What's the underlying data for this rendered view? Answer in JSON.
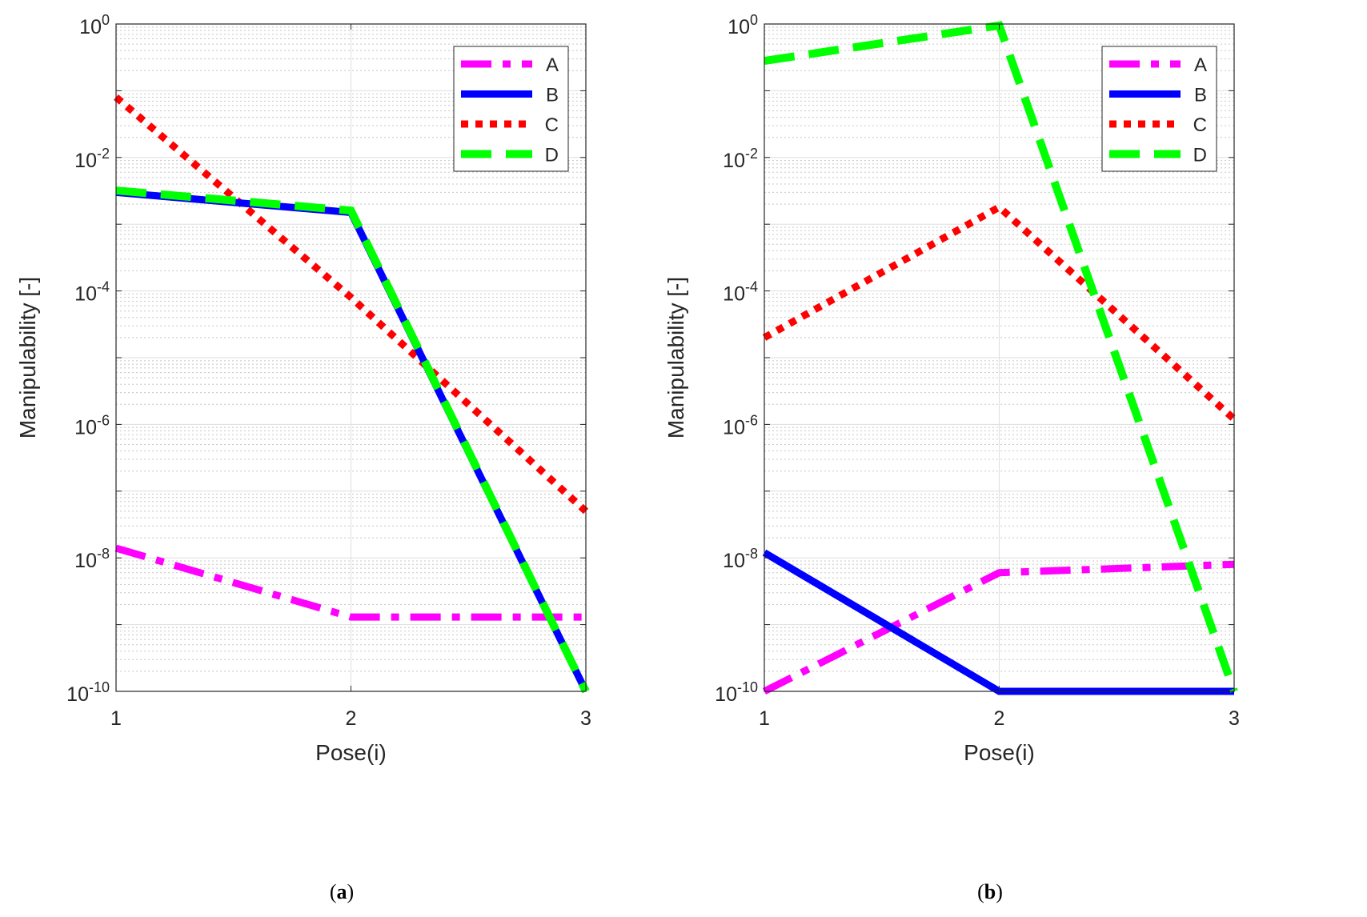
{
  "chart_data": [
    {
      "type": "line",
      "caption_letter": "a",
      "xlabel": "Pose(i)",
      "ylabel": "Manipulability [-]",
      "x": [
        1,
        2,
        3
      ],
      "xticks": [
        "1",
        "2",
        "3"
      ],
      "yscale": "log",
      "ylim": [
        1e-10,
        1
      ],
      "yticks": [
        {
          "base": "10",
          "exp": "0"
        },
        {
          "base": "10",
          "exp": "-2"
        },
        {
          "base": "10",
          "exp": "-4"
        },
        {
          "base": "10",
          "exp": "-6"
        },
        {
          "base": "10",
          "exp": "-8"
        },
        {
          "base": "10",
          "exp": "-10"
        }
      ],
      "grid": true,
      "legend_position": "top-right",
      "series": [
        {
          "name": "A",
          "color": "#ff00ff",
          "style": "dashdot",
          "values": [
            1.4e-08,
            1.3e-09,
            1.3e-09
          ]
        },
        {
          "name": "B",
          "color": "#0000ff",
          "style": "solid",
          "values": [
            0.003,
            0.0015,
            1e-10
          ]
        },
        {
          "name": "C",
          "color": "#ff0000",
          "style": "dotted",
          "values": [
            0.08,
            8e-05,
            5e-08
          ]
        },
        {
          "name": "D",
          "color": "#00ff00",
          "style": "dashed",
          "values": [
            0.0032,
            0.0016,
            1e-10
          ]
        }
      ]
    },
    {
      "type": "line",
      "caption_letter": "b",
      "xlabel": "Pose(i)",
      "ylabel": "Manipulability [-]",
      "x": [
        1,
        2,
        3
      ],
      "xticks": [
        "1",
        "2",
        "3"
      ],
      "yscale": "log",
      "ylim": [
        1e-10,
        1
      ],
      "yticks": [
        {
          "base": "10",
          "exp": "0"
        },
        {
          "base": "10",
          "exp": "-2"
        },
        {
          "base": "10",
          "exp": "-4"
        },
        {
          "base": "10",
          "exp": "-6"
        },
        {
          "base": "10",
          "exp": "-8"
        },
        {
          "base": "10",
          "exp": "-10"
        }
      ],
      "grid": true,
      "legend_position": "top-right",
      "series": [
        {
          "name": "A",
          "color": "#ff00ff",
          "style": "dashdot",
          "values": [
            1e-10,
            6e-09,
            8e-09
          ]
        },
        {
          "name": "B",
          "color": "#0000ff",
          "style": "solid",
          "values": [
            1.2e-08,
            1e-10,
            1e-10
          ]
        },
        {
          "name": "C",
          "color": "#ff0000",
          "style": "dotted",
          "values": [
            2e-05,
            0.0018,
            1.2e-06
          ]
        },
        {
          "name": "D",
          "color": "#00ff00",
          "style": "dashed",
          "values": [
            0.28,
            0.95,
            1e-10
          ]
        }
      ]
    }
  ]
}
